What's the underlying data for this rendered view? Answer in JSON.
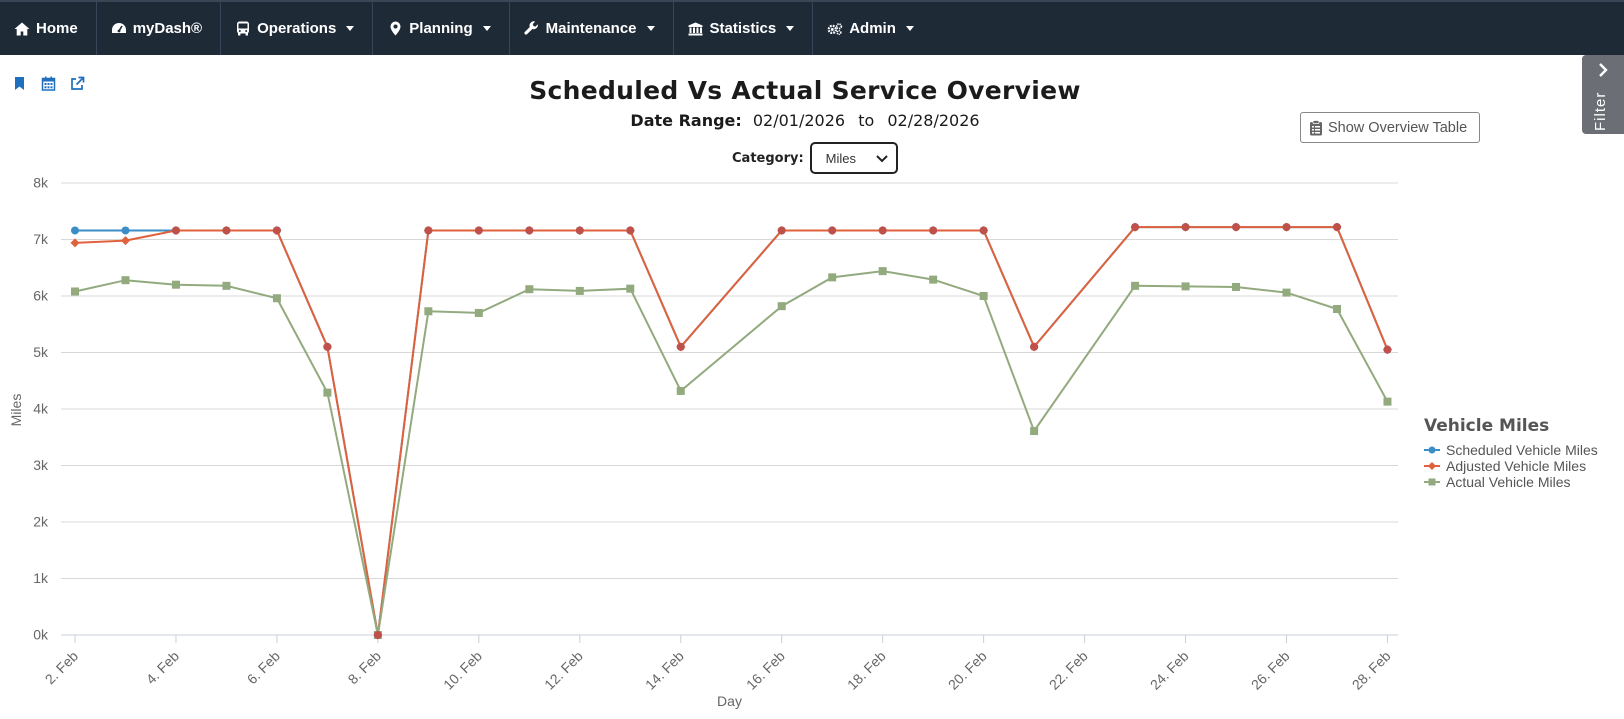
{
  "nav": {
    "items": [
      {
        "label": "Home",
        "icon": "home-icon",
        "caret": false
      },
      {
        "label": "myDash®",
        "icon": "dashboard-icon",
        "caret": false
      },
      {
        "label": "Operations",
        "icon": "bus-icon",
        "caret": true
      },
      {
        "label": "Planning",
        "icon": "map-marker-icon",
        "caret": true
      },
      {
        "label": "Maintenance",
        "icon": "wrench-icon",
        "caret": true
      },
      {
        "label": "Statistics",
        "icon": "bank-icon",
        "caret": true
      },
      {
        "label": "Admin",
        "icon": "gears-icon",
        "caret": true
      }
    ]
  },
  "toolbar": {
    "icons": [
      "bookmark-icon",
      "calendar-icon",
      "external-link-icon"
    ],
    "accent": "#1f6fbf"
  },
  "page": {
    "title": "Scheduled Vs Actual Service Overview",
    "date_range_label": "Date Range:",
    "date_from": "02/01/2026",
    "date_sep": "to",
    "date_to": "02/28/2026",
    "category_label": "Category:",
    "category_value": "Miles",
    "overview_button": "Show Overview Table",
    "filter_label": "Filter"
  },
  "chart_data": {
    "type": "line",
    "title": "",
    "xlabel": "Day",
    "ylabel": "Miles",
    "ylim": [
      0,
      8000
    ],
    "yticks": [
      "0k",
      "1k",
      "2k",
      "3k",
      "4k",
      "5k",
      "6k",
      "7k",
      "8k"
    ],
    "x": [
      "2. Feb",
      "3. Feb",
      "4. Feb",
      "5. Feb",
      "6. Feb",
      "7. Feb",
      "8. Feb",
      "9. Feb",
      "10. Feb",
      "11. Feb",
      "12. Feb",
      "13. Feb",
      "14. Feb",
      "15. Feb",
      "16. Feb",
      "17. Feb",
      "18. Feb",
      "19. Feb",
      "20. Feb",
      "21. Feb",
      "22. Feb",
      "23. Feb",
      "24. Feb",
      "25. Feb",
      "26. Feb",
      "27. Feb",
      "28. Feb"
    ],
    "xtick_labels": [
      "2. Feb",
      "4. Feb",
      "6. Feb",
      "8. Feb",
      "10. Feb",
      "12. Feb",
      "14. Feb",
      "16. Feb",
      "18. Feb",
      "20. Feb",
      "22. Feb",
      "24. Feb",
      "26. Feb",
      "28. Feb"
    ],
    "legend_title": "Vehicle Miles",
    "legend_position": "right",
    "grid": true,
    "series": [
      {
        "name": "Scheduled Vehicle Miles",
        "color": "#3b8dc5",
        "marker": "circle",
        "values": [
          7160,
          7160,
          7160,
          7160,
          7160,
          5100,
          0,
          7160,
          7160,
          7160,
          7160,
          7160,
          5100,
          null,
          7160,
          7160,
          7160,
          7160,
          7160,
          5100,
          null,
          7220,
          7220,
          7220,
          7220,
          7220,
          5050
        ]
      },
      {
        "name": "Adjusted Vehicle Miles",
        "color": "#e0623d",
        "marker": "diamond",
        "values": [
          6940,
          6980,
          7160,
          7160,
          7160,
          5100,
          0,
          7160,
          7160,
          7160,
          7160,
          7160,
          5100,
          null,
          7160,
          7160,
          7160,
          7160,
          7160,
          5100,
          null,
          7220,
          7220,
          7220,
          7220,
          7220,
          5050
        ]
      },
      {
        "name": "Actual Vehicle Miles",
        "color": "#92aa7e",
        "marker": "square",
        "values": [
          6080,
          6280,
          6200,
          6180,
          5960,
          4290,
          0,
          5730,
          5700,
          6120,
          6090,
          6130,
          4320,
          null,
          5820,
          6330,
          6440,
          6290,
          6000,
          3610,
          null,
          6180,
          6170,
          6160,
          6060,
          5770,
          4130
        ]
      }
    ]
  }
}
